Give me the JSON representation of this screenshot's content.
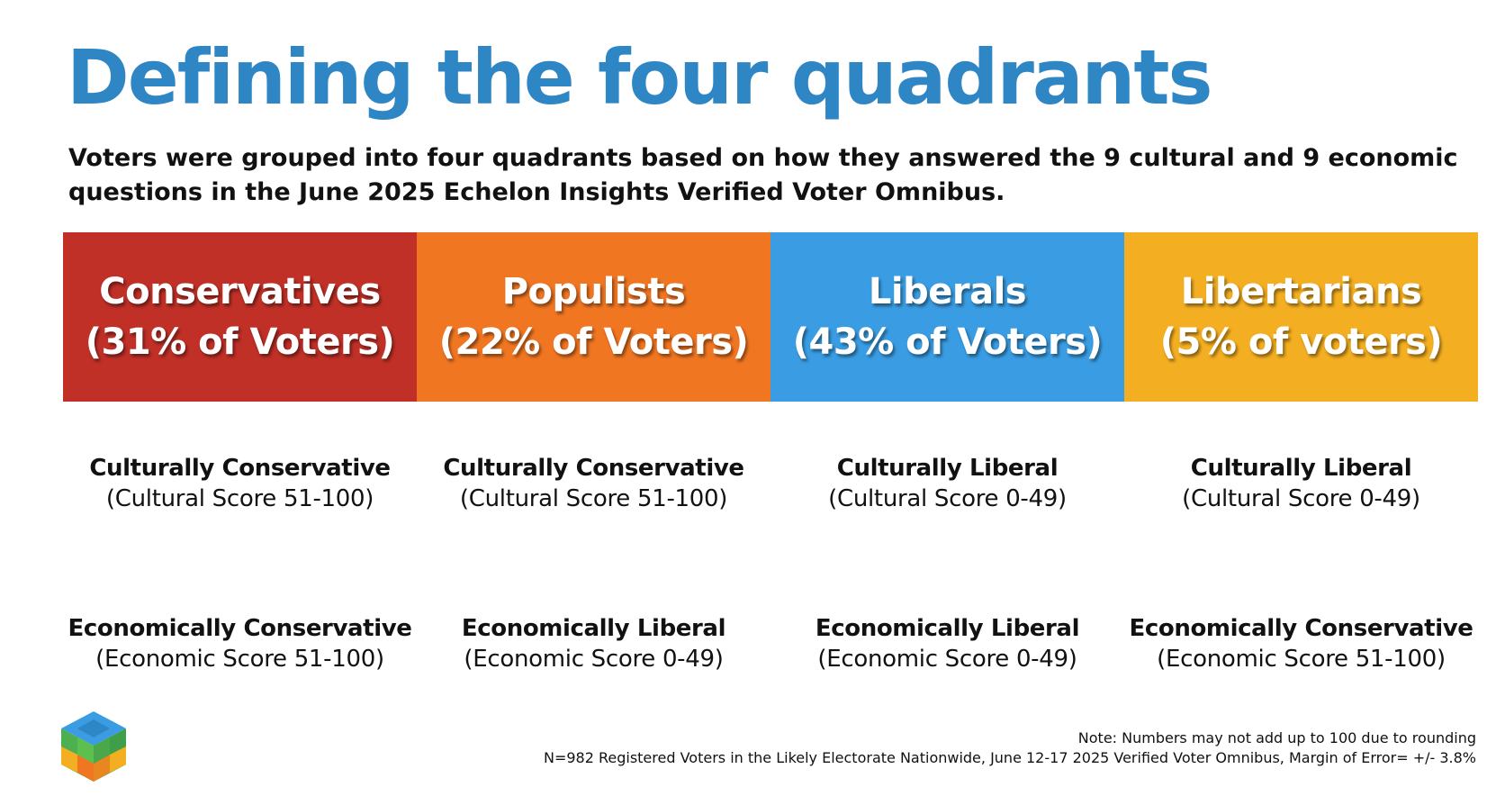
{
  "title": "Defining the four quadrants",
  "subtitle": "Voters were grouped into four quadrants based on how they answered the 9 cultural and 9 economic questions in the June 2025 Echelon Insights Verified Voter Omnibus.",
  "colors": {
    "title": "#2f86c5",
    "conservatives": "#c03027",
    "populists": "#f07622",
    "liberals": "#3a9de3",
    "libertarians": "#f4ae21"
  },
  "quadrants": [
    {
      "name": "Conservatives",
      "share": "(31% of Voters)",
      "cultural_label": "Culturally Conservative",
      "cultural_range": "(Cultural Score 51-100)",
      "economic_label": "Economically Conservative",
      "economic_range": "(Economic Score 51-100)"
    },
    {
      "name": "Populists",
      "share": "(22% of Voters)",
      "cultural_label": "Culturally Conservative",
      "cultural_range": "(Cultural Score 51-100)",
      "economic_label": "Economically Liberal",
      "economic_range": "(Economic Score 0-49)"
    },
    {
      "name": "Liberals",
      "share": "(43% of Voters)",
      "cultural_label": "Culturally Liberal",
      "cultural_range": "(Cultural Score 0-49)",
      "economic_label": "Economically Liberal",
      "economic_range": "(Economic Score 0-49)"
    },
    {
      "name": "Libertarians",
      "share": "(5% of voters)",
      "cultural_label": "Culturally Liberal",
      "cultural_range": "(Cultural Score 0-49)",
      "economic_label": "Economically Conservative",
      "economic_range": "(Economic Score 51-100)"
    }
  ],
  "footer": {
    "note": "Note: Numbers may not add up to 100 due to rounding",
    "methodology": "N=982 Registered Voters in the Likely Electorate Nationwide, June 12-17 2025 Verified Voter Omnibus, Margin of Error= +/- 3.8%"
  },
  "logo": {
    "icon": "echelon-cube-logo-icon"
  }
}
